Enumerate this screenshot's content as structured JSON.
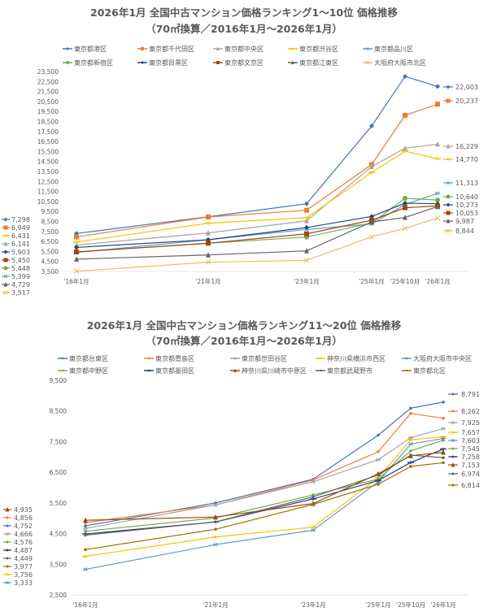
{
  "chart_data": [
    {
      "type": "line",
      "title": "2026年1月 全国中古マンション価格ランキング1～10位 価格推移",
      "subtitle": "（70㎡換算／2016年1月～2026年1月）",
      "categories": [
        "'16年1月",
        "'21年1月",
        "'23年1月",
        "'25年1月",
        "'25年10月",
        "'26年1月"
      ],
      "ylim": [
        3500,
        23500
      ],
      "ytick_step": 1000,
      "grid": false,
      "legend": "top",
      "series": [
        {
          "name": "東京都港区",
          "color": "#4472C4",
          "marker": "diamond",
          "values": [
            7298,
            8970,
            10270,
            18050,
            23010,
            22003
          ]
        },
        {
          "name": "東京都千代田区",
          "color": "#ED7D31",
          "marker": "square",
          "values": [
            6949,
            8950,
            9620,
            14200,
            19110,
            20237
          ]
        },
        {
          "name": "東京都中央区",
          "color": "#A5A5A5",
          "marker": "triangle",
          "values": [
            6141,
            7350,
            8560,
            13990,
            15830,
            16229
          ]
        },
        {
          "name": "東京都渋谷区",
          "color": "#FFC000",
          "marker": "dash",
          "values": [
            6431,
            8330,
            8870,
            13400,
            15530,
            14770
          ]
        },
        {
          "name": "東京都品川区",
          "color": "#5B9BD5",
          "marker": "star",
          "values": [
            5399,
            6670,
            7700,
            8250,
            10190,
            11313
          ]
        },
        {
          "name": "東京都新宿区",
          "color": "#70AD47",
          "marker": "circle",
          "values": [
            5448,
            6320,
            6940,
            8350,
            10820,
            10640
          ]
        },
        {
          "name": "東京都目黒区",
          "color": "#264478",
          "marker": "diamond",
          "values": [
            5903,
            6670,
            7890,
            9000,
            10330,
            10273
          ]
        },
        {
          "name": "東京都文京区",
          "color": "#9E480E",
          "marker": "square",
          "values": [
            5450,
            6320,
            7260,
            8620,
            9870,
            10053
          ]
        },
        {
          "name": "東京都江東区",
          "color": "#636363",
          "marker": "triangle",
          "values": [
            4729,
            5150,
            5560,
            8450,
            8900,
            9987
          ]
        },
        {
          "name": "大阪府大阪市北区",
          "color": "#E8BE6A",
          "marker": "x",
          "values": [
            3517,
            4420,
            4610,
            6960,
            7810,
            8844
          ]
        }
      ]
    },
    {
      "type": "line",
      "title": "2026年1月 全国中古マンション価格ランキング11～20位 価格推移",
      "subtitle": "（70㎡換算／2016年1月～2026年1月）",
      "categories": [
        "'16年1月",
        "'21年1月",
        "'23年1月",
        "'25年1月",
        "'25年10月",
        "'26年1月"
      ],
      "ylim": [
        2500,
        9500
      ],
      "ytick_step": 1000,
      "grid": false,
      "legend": "top",
      "series": [
        {
          "name": "東京都台東区",
          "color": "#4472C4",
          "marker": "dot",
          "values": [
            4752,
            5500,
            6275,
            7710,
            8590,
            8791
          ]
        },
        {
          "name": "東京都豊島区",
          "color": "#ED7D31",
          "marker": "dot",
          "values": [
            4856,
            5435,
            6250,
            7170,
            8420,
            8262
          ]
        },
        {
          "name": "東京都世田谷区",
          "color": "#A5A5A5",
          "marker": "star",
          "values": [
            4666,
            5435,
            6190,
            6910,
            7630,
            7925
          ]
        },
        {
          "name": "神奈川県横浜市西区",
          "color": "#FFC000",
          "marker": "dash",
          "values": [
            3756,
            4390,
            4710,
            6320,
            7560,
            7657
          ]
        },
        {
          "name": "大阪府大阪市中央区",
          "color": "#5B9BD5",
          "marker": "star",
          "values": [
            3333,
            4140,
            4610,
            6190,
            7420,
            7603
          ]
        },
        {
          "name": "東京都中野区",
          "color": "#70AD47",
          "marker": "dot",
          "values": [
            4576,
            5010,
            5760,
            6280,
            7200,
            7545
          ]
        },
        {
          "name": "東京都墨田区",
          "color": "#264478",
          "marker": "dash",
          "values": [
            4487,
            4880,
            5630,
            6230,
            6820,
            7258
          ]
        },
        {
          "name": "神奈川県川崎市中原区",
          "color": "#9E480E",
          "marker": "triangle",
          "values": [
            4935,
            5040,
            5480,
            6450,
            7040,
            7153
          ]
        },
        {
          "name": "東京都武蔵野市",
          "color": "#636363",
          "marker": "dot",
          "values": [
            4449,
            4880,
            5700,
            6410,
            7060,
            6974
          ]
        },
        {
          "name": "東京都北区",
          "color": "#997300",
          "marker": "dot",
          "values": [
            3977,
            4640,
            5450,
            6110,
            6690,
            6814
          ]
        }
      ]
    }
  ]
}
